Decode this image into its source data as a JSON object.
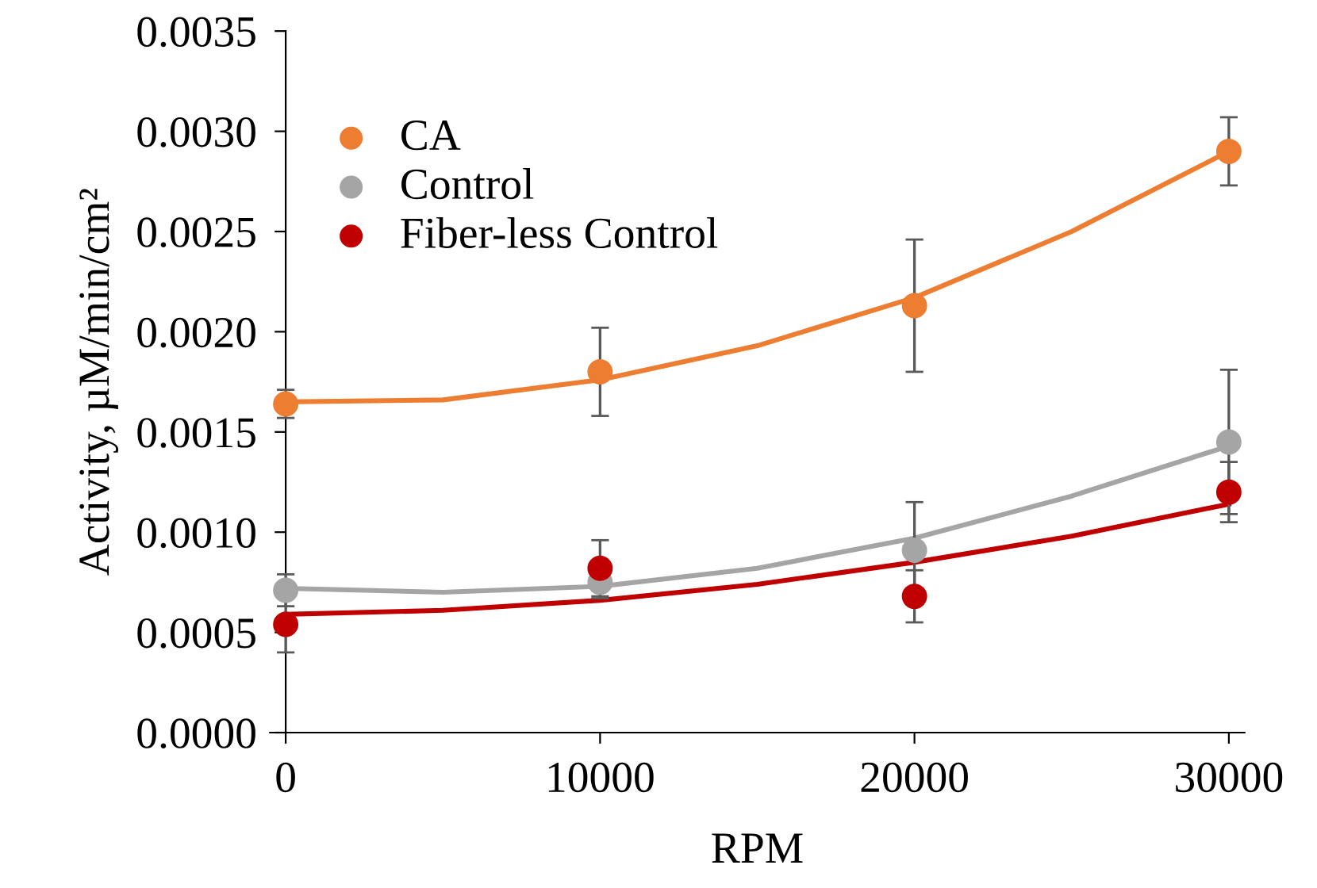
{
  "chart_data": {
    "type": "scatter",
    "xlabel": "RPM",
    "ylabel": "Activity, µM/min/cm²",
    "x": [
      0,
      10000,
      20000,
      30000
    ],
    "series": [
      {
        "name": "CA",
        "color": "#ed7d31",
        "values": [
          0.00164,
          0.0018,
          0.00213,
          0.0029
        ],
        "errors": [
          7e-05,
          0.00022,
          0.00033,
          0.00017
        ]
      },
      {
        "name": "Control",
        "color": "#a5a5a5",
        "values": [
          0.00071,
          0.00075,
          0.00091,
          0.00145
        ],
        "errors": [
          8e-05,
          8e-05,
          0.00024,
          0.00036
        ]
      },
      {
        "name": "Fiber-less Control",
        "color": "#c00000",
        "values": [
          0.00054,
          0.00082,
          0.00068,
          0.0012
        ],
        "errors": [
          0.00014,
          0.00014,
          0.00013,
          0.00015
        ]
      },
      {
        "type": "line",
        "marker": "none",
        "color": "#ed7d31",
        "x": [
          0,
          5000,
          10000,
          15000,
          20000,
          25000,
          30000
        ],
        "values": [
          0.00165,
          0.00166,
          0.00176,
          0.00193,
          0.00217,
          0.0025,
          0.0029
        ]
      },
      {
        "type": "line",
        "marker": "none",
        "color": "#a5a5a5",
        "x": [
          0,
          5000,
          10000,
          15000,
          20000,
          25000,
          30000
        ],
        "values": [
          0.00072,
          0.0007,
          0.00073,
          0.00082,
          0.00097,
          0.00118,
          0.00143
        ]
      },
      {
        "type": "line",
        "marker": "none",
        "color": "#c00000",
        "x": [
          0,
          5000,
          10000,
          15000,
          20000,
          25000,
          30000
        ],
        "values": [
          0.00059,
          0.00061,
          0.00066,
          0.00074,
          0.00085,
          0.00098,
          0.00114
        ]
      }
    ],
    "xlim": [
      -500,
      30500
    ],
    "xticks": [
      0,
      10000,
      20000,
      30000
    ],
    "ylim": [
      0,
      0.0035
    ],
    "yticks": [
      {
        "value": 0,
        "label": "0.0000"
      },
      {
        "value": 0.0005,
        "label": "0.0005"
      },
      {
        "value": 0.001,
        "label": "0.0010"
      },
      {
        "value": 0.0015,
        "label": "0.0015"
      },
      {
        "value": 0.002,
        "label": "0.0020"
      },
      {
        "value": 0.0025,
        "label": "0.0025"
      },
      {
        "value": 0.003,
        "label": "0.0030"
      },
      {
        "value": 0.0035,
        "label": "0.0035"
      }
    ],
    "grid": false,
    "legend": "top left",
    "marker": "circle"
  }
}
